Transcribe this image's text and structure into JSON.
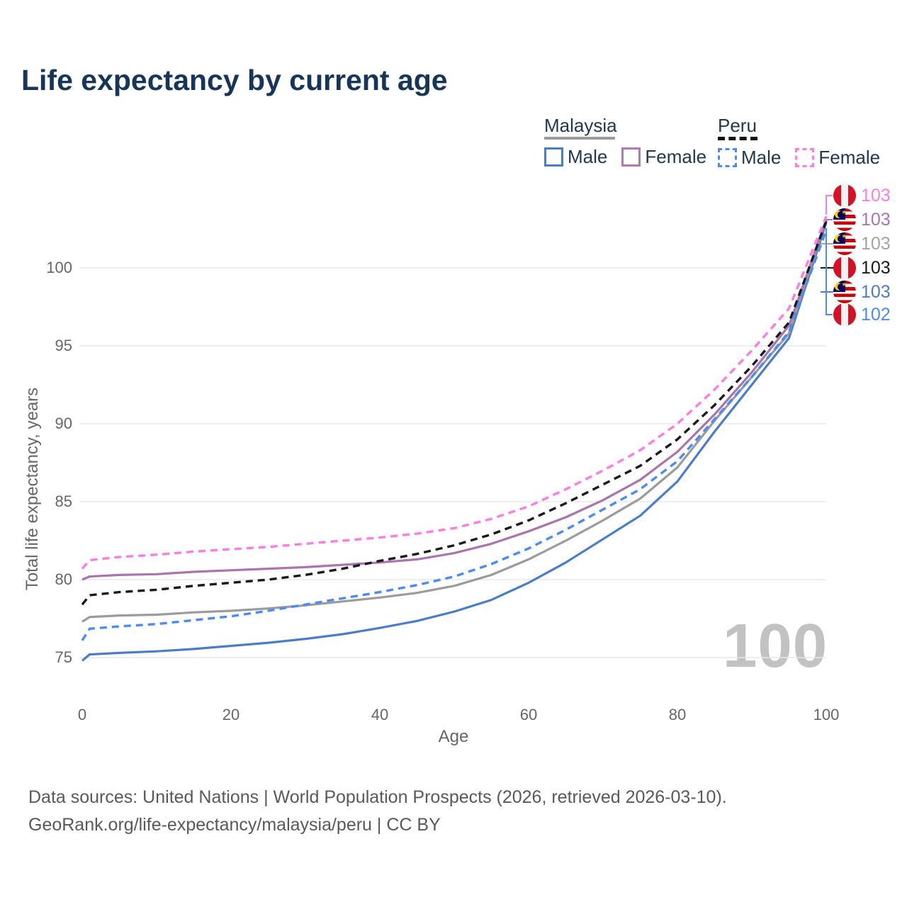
{
  "title": "Life expectancy by current age",
  "watermark": "100",
  "legend": {
    "groups": [
      {
        "label": "Malaysia",
        "line_style": "solid",
        "line_color": "#9b9b9b",
        "items": [
          {
            "label": "Male",
            "color": "#4a7dc9",
            "dashed": false
          },
          {
            "label": "Female",
            "color": "#b279b2",
            "dashed": false
          }
        ]
      },
      {
        "label": "Peru",
        "line_style": "dashed",
        "line_color": "#111111",
        "items": [
          {
            "label": "Male",
            "color": "#4b8bf5",
            "dashed": true
          },
          {
            "label": "Female",
            "color": "#ff7ce0",
            "dashed": true
          }
        ]
      }
    ]
  },
  "y_axis": {
    "title": "Total life expectancy, years",
    "ticks": [
      75,
      80,
      85,
      90,
      95,
      100
    ]
  },
  "x_axis": {
    "title": "Age",
    "ticks": [
      0,
      20,
      40,
      60,
      80,
      100
    ]
  },
  "end_labels": [
    {
      "value": "103",
      "flag": "peru",
      "color": "#ff7ce0",
      "series": "peru-female"
    },
    {
      "value": "103",
      "flag": "malaysia",
      "color": "#ab74ad",
      "series": "malaysia-female"
    },
    {
      "value": "103",
      "flag": "malaysia",
      "color": "#a3a3a3",
      "series": "malaysia-overall"
    },
    {
      "value": "103",
      "flag": "peru",
      "color": "#1a1a1a",
      "series": "peru-overall"
    },
    {
      "value": "103",
      "flag": "malaysia",
      "color": "#4a7dc9",
      "series": "malaysia-male"
    },
    {
      "value": "102",
      "flag": "peru",
      "color": "#4b8bf5",
      "series": "peru-male"
    }
  ],
  "footer": {
    "line1": "Data sources: United Nations | World Population Prospects (2026, retrieved 2026-03-10).",
    "line2": "GeoRank.org/life-expectancy/malaysia/peru | CC BY"
  },
  "chart_data": {
    "type": "line",
    "title": "Life expectancy by current age",
    "xlabel": "Age",
    "ylabel": "Total life expectancy, years",
    "xlim": [
      0,
      100
    ],
    "ylim": [
      73,
      104
    ],
    "grid": "horizontal-only",
    "legend_position": "top-right",
    "x": [
      0,
      1,
      5,
      10,
      15,
      20,
      25,
      30,
      35,
      40,
      45,
      50,
      55,
      60,
      65,
      70,
      75,
      80,
      85,
      90,
      95,
      100
    ],
    "series": [
      {
        "name": "Malaysia Male",
        "slug": "malaysia-male",
        "color": "#4a7dc9",
        "dashed": false,
        "values": [
          74.8,
          75.2,
          75.3,
          75.4,
          75.55,
          75.75,
          75.95,
          76.2,
          76.5,
          76.9,
          77.35,
          77.95,
          78.7,
          79.8,
          81.1,
          82.6,
          84.1,
          86.3,
          89.5,
          92.5,
          95.5,
          102.9
        ]
      },
      {
        "name": "Malaysia Overall",
        "slug": "malaysia-overall",
        "color": "#9b9b9b",
        "dashed": false,
        "values": [
          77.3,
          77.6,
          77.7,
          77.75,
          77.9,
          78.0,
          78.15,
          78.35,
          78.6,
          78.85,
          79.15,
          79.6,
          80.3,
          81.3,
          82.5,
          83.8,
          85.2,
          87.2,
          90.2,
          93.0,
          95.8,
          103.1
        ]
      },
      {
        "name": "Malaysia Female",
        "slug": "malaysia-female",
        "color": "#ab74ad",
        "dashed": false,
        "values": [
          80.0,
          80.2,
          80.3,
          80.35,
          80.5,
          80.6,
          80.7,
          80.8,
          80.95,
          81.1,
          81.3,
          81.7,
          82.3,
          83.1,
          84.0,
          85.1,
          86.4,
          88.2,
          90.6,
          93.3,
          96.3,
          103.1
        ]
      },
      {
        "name": "Peru Male",
        "slug": "peru-male",
        "color": "#4b8bf5",
        "dashed": true,
        "values": [
          76.1,
          76.85,
          77.0,
          77.15,
          77.4,
          77.65,
          78.0,
          78.4,
          78.8,
          79.2,
          79.65,
          80.2,
          81.0,
          82.0,
          83.2,
          84.5,
          85.8,
          87.6,
          90.3,
          93.0,
          95.9,
          102.4
        ]
      },
      {
        "name": "Peru Overall",
        "slug": "peru-overall",
        "color": "#1a1a1a",
        "dashed": true,
        "values": [
          78.4,
          79.0,
          79.2,
          79.35,
          79.6,
          79.8,
          80.0,
          80.3,
          80.7,
          81.2,
          81.65,
          82.2,
          82.9,
          83.8,
          84.9,
          86.1,
          87.3,
          89.0,
          91.2,
          93.7,
          96.5,
          103.0
        ]
      },
      {
        "name": "Peru Female",
        "slug": "peru-female",
        "color": "#ff7ce0",
        "dashed": true,
        "values": [
          80.7,
          81.25,
          81.45,
          81.6,
          81.8,
          81.95,
          82.1,
          82.3,
          82.5,
          82.7,
          82.95,
          83.3,
          83.9,
          84.7,
          85.8,
          87.0,
          88.3,
          90.0,
          92.2,
          94.7,
          97.4,
          103.3
        ]
      }
    ]
  }
}
